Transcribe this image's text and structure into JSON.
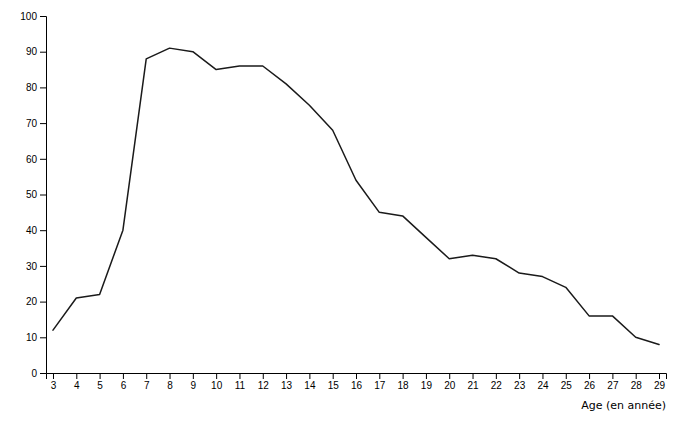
{
  "chart_data": {
    "type": "line",
    "xlabel": "Age (en année)",
    "x": [
      3,
      4,
      5,
      6,
      7,
      8,
      9,
      10,
      11,
      12,
      13,
      14,
      15,
      16,
      17,
      18,
      19,
      20,
      21,
      22,
      23,
      24,
      25,
      26,
      27,
      28,
      29
    ],
    "values": [
      12,
      21,
      22,
      40,
      88,
      91,
      90,
      85,
      86,
      86,
      81,
      75,
      68,
      54,
      45,
      44,
      38,
      32,
      33,
      32,
      28,
      27,
      24,
      16,
      16,
      10,
      8
    ],
    "color": "#1a1a1a",
    "xlim": [
      2.7,
      29.3
    ],
    "ylim": [
      0,
      100
    ],
    "xticks": [
      3,
      4,
      5,
      6,
      7,
      8,
      9,
      10,
      11,
      12,
      13,
      14,
      15,
      16,
      17,
      18,
      19,
      20,
      21,
      22,
      23,
      24,
      25,
      26,
      27,
      28,
      29
    ],
    "yticks": [
      0,
      10,
      20,
      30,
      40,
      50,
      60,
      70,
      80,
      90,
      100
    ],
    "grid": false
  }
}
